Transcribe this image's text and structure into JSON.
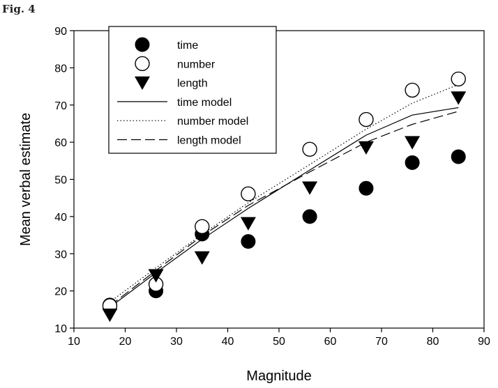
{
  "figure_label": "Fig. 4",
  "chart_data": {
    "type": "scatter",
    "title": "",
    "xlabel": "Magnitude",
    "ylabel": "Mean verbal estimate",
    "xlim": [
      10,
      90
    ],
    "ylim": [
      10,
      90
    ],
    "xticks": [
      10,
      20,
      30,
      40,
      50,
      60,
      70,
      80,
      90
    ],
    "yticks": [
      10,
      20,
      30,
      40,
      50,
      60,
      70,
      80,
      90
    ],
    "grid": false,
    "legend_position": "top-left",
    "x": [
      17,
      26,
      35,
      44,
      56,
      67,
      76,
      85
    ],
    "series": [
      {
        "name": "time",
        "kind": "points",
        "marker": "filled-circle",
        "values": [
          16.2,
          20.0,
          35.3,
          33.3,
          40.0,
          47.6,
          54.5,
          56.1
        ]
      },
      {
        "name": "number",
        "kind": "points",
        "marker": "open-circle",
        "values": [
          16.0,
          21.8,
          37.3,
          46.1,
          58.1,
          66.1,
          74.0,
          77.0
        ]
      },
      {
        "name": "length",
        "kind": "points",
        "marker": "filled-triangle-down",
        "values": [
          13.6,
          24.2,
          29.0,
          38.2,
          47.8,
          58.6,
          60.0,
          72.0
        ]
      },
      {
        "name": "time model",
        "kind": "line",
        "style": "solid",
        "values": [
          15.6,
          24.9,
          33.9,
          42.2,
          52.5,
          61.9,
          67.3,
          69.3
        ]
      },
      {
        "name": "number model",
        "kind": "line",
        "style": "dotted",
        "values": [
          17.0,
          26.2,
          35.2,
          43.7,
          54.0,
          63.5,
          70.5,
          75.5
        ]
      },
      {
        "name": "length model",
        "kind": "line",
        "style": "dashed",
        "values": [
          16.0,
          25.5,
          34.8,
          43.0,
          52.0,
          60.0,
          64.8,
          68.3
        ]
      }
    ]
  }
}
